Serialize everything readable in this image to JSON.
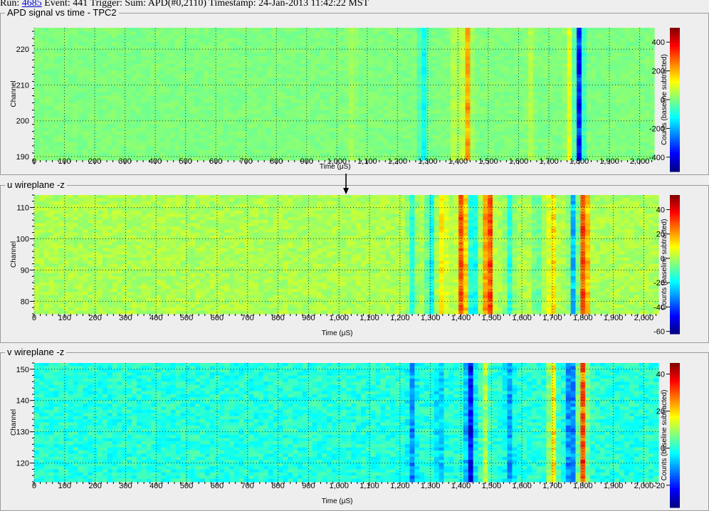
{
  "header": {
    "run_label": "Run:",
    "run_number": "4685",
    "rest": "Event: 441 Trigger: Sum: APD(#0,2110) Timestamp: 24-Jan-2013 11:42:22 MST"
  },
  "colors": {
    "background": "#eeeeee",
    "grid": "#000000",
    "cursor_arrow": "#000000"
  },
  "cursor": {
    "time": 1030
  },
  "chart_data": [
    {
      "type": "heatmap",
      "title": "APD signal vs time - TPC2",
      "xlabel": "Time (μS)",
      "ylabel": "Channel",
      "zlabel": "Counts (baseline subtracted)",
      "xlim": [
        0,
        2048
      ],
      "ylim": [
        189,
        226
      ],
      "zlim": [
        -500,
        500
      ],
      "x_ticks": [
        "0",
        "100",
        "200",
        "300",
        "400",
        "500",
        "600",
        "700",
        "800",
        "900",
        "1,000",
        "1,100",
        "1,200",
        "1,300",
        "1,400",
        "1,500",
        "1,600",
        "1,700",
        "1,800",
        "1,900",
        "2,000"
      ],
      "y_ticks": [
        190,
        200,
        210,
        220
      ],
      "z_ticks": [
        400,
        200,
        0,
        -200,
        -400
      ],
      "channel_range": [
        189,
        226
      ],
      "signal": [
        {
          "t": 1050,
          "amp": 40
        },
        {
          "t": 1285,
          "amp": -150
        },
        {
          "t": 1390,
          "amp": 80
        },
        {
          "t": 1430,
          "amp": 260
        },
        {
          "t": 1640,
          "amp": 60
        },
        {
          "t": 1770,
          "amp": 120
        },
        {
          "t": 1800,
          "amp": -420
        }
      ],
      "noise": 20
    },
    {
      "type": "heatmap",
      "title": "u wireplane -z",
      "xlabel": "Time (μS)",
      "ylabel": "Channel",
      "zlabel": "Counts (baseline subtracted)",
      "xlim": [
        0,
        2048
      ],
      "ylim": [
        76,
        114
      ],
      "zlim": [
        -62,
        52
      ],
      "x_ticks": [
        "0",
        "100",
        "200",
        "300",
        "400",
        "500",
        "600",
        "700",
        "800",
        "900",
        "1,000",
        "1,100",
        "1,200",
        "1,300",
        "1,400",
        "1,500",
        "1,600",
        "1,700",
        "1,800",
        "1,900",
        "2,000"
      ],
      "y_ticks": [
        80,
        90,
        100,
        110
      ],
      "z_ticks": [
        40,
        20,
        0,
        -20,
        -40,
        -60
      ],
      "channel_range": [
        76,
        114
      ],
      "signal": [
        {
          "t": 1240,
          "amp": -18
        },
        {
          "t": 1300,
          "amp": -24
        },
        {
          "t": 1340,
          "amp": 14
        },
        {
          "t": 1405,
          "amp": 38
        },
        {
          "t": 1440,
          "amp": -30
        },
        {
          "t": 1490,
          "amp": 44
        },
        {
          "t": 1560,
          "amp": -18
        },
        {
          "t": 1650,
          "amp": -12
        },
        {
          "t": 1700,
          "amp": 16
        },
        {
          "t": 1770,
          "amp": -34
        },
        {
          "t": 1805,
          "amp": 40
        }
      ],
      "noise": 4
    },
    {
      "type": "heatmap",
      "title": "v wireplane -z",
      "xlabel": "Time (μS)",
      "ylabel": "Channel",
      "zlabel": "Counts (baseline subtracted)",
      "xlim": [
        0,
        2048
      ],
      "ylim": [
        114,
        152
      ],
      "zlim": [
        -32,
        46
      ],
      "x_ticks": [
        "0",
        "100",
        "200",
        "300",
        "400",
        "500",
        "600",
        "700",
        "800",
        "900",
        "1,000",
        "1,100",
        "1,200",
        "1,300",
        "1,400",
        "1,500",
        "1,600",
        "1,700",
        "1,800",
        "1,900",
        "2,000"
      ],
      "y_ticks": [
        120,
        130,
        140,
        150
      ],
      "z_ticks": [
        40,
        20,
        0,
        -20
      ],
      "channel_range": [
        114,
        152
      ],
      "signal": [
        {
          "t": 1240,
          "amp": -14
        },
        {
          "t": 1330,
          "amp": -10
        },
        {
          "t": 1430,
          "amp": -28
        },
        {
          "t": 1480,
          "amp": 12
        },
        {
          "t": 1560,
          "amp": -12
        },
        {
          "t": 1700,
          "amp": 24
        },
        {
          "t": 1760,
          "amp": -20
        },
        {
          "t": 1800,
          "amp": 36
        }
      ],
      "noise": 4
    }
  ]
}
